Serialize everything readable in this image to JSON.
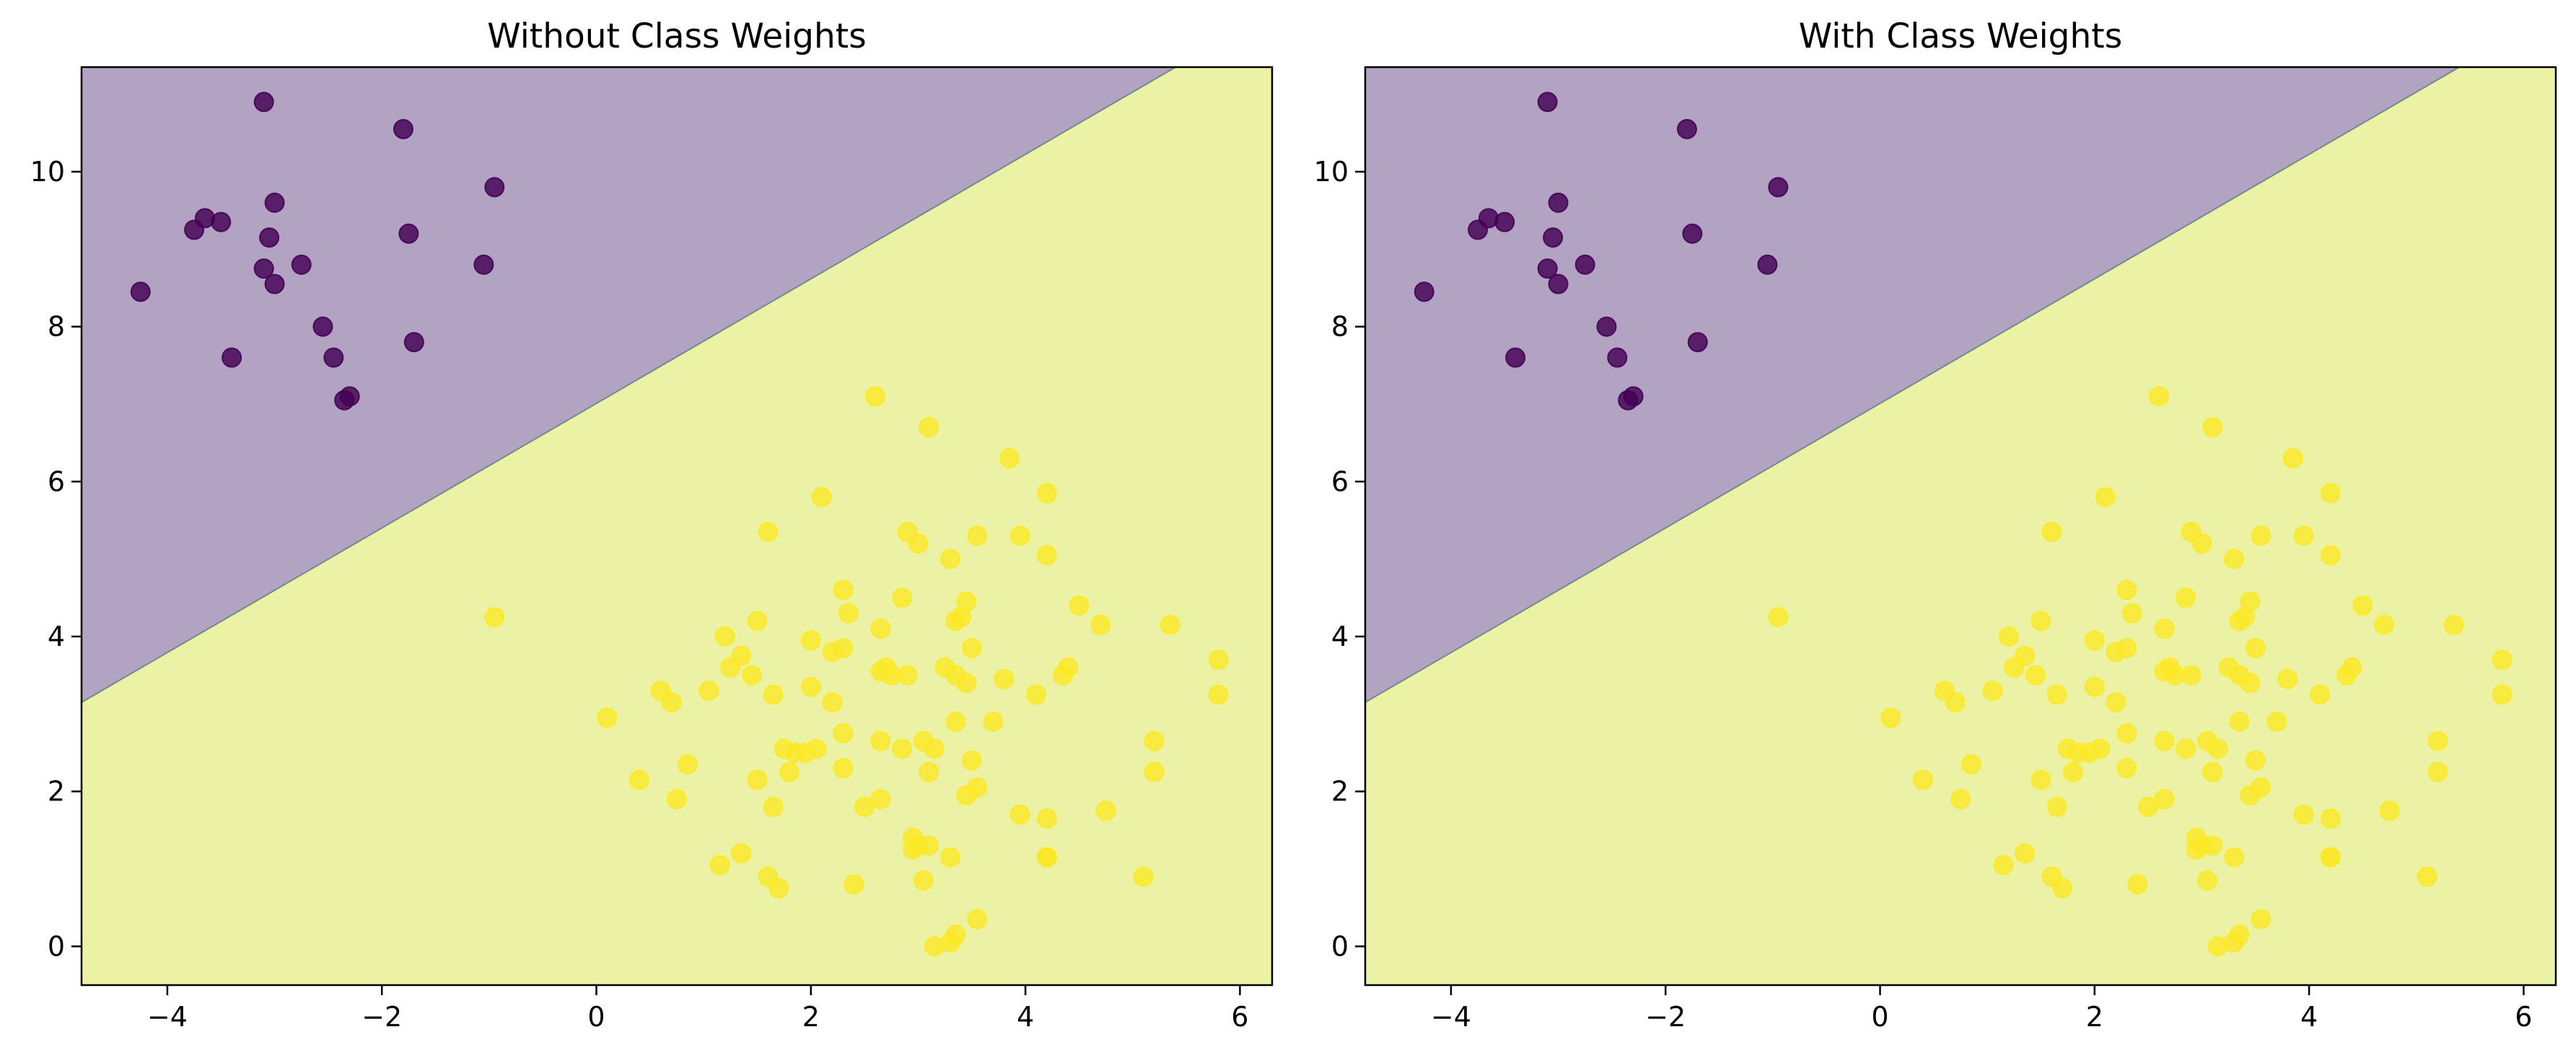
{
  "chart_data": [
    {
      "type": "scatter",
      "title": "Without Class Weights",
      "xlabel": "",
      "ylabel": "",
      "xlim": [
        -4.8,
        6.3
      ],
      "ylim": [
        -0.5,
        11.35
      ],
      "xticks": [
        -4,
        -2,
        0,
        2,
        4,
        6
      ],
      "xtick_labels": [
        "−4",
        "−2",
        "0",
        "2",
        "4",
        "6"
      ],
      "yticks": [
        0,
        2,
        4,
        6,
        8,
        10
      ],
      "ytick_labels": [
        "0",
        "2",
        "4",
        "6",
        "8",
        "10"
      ],
      "grid": false,
      "legend": "none",
      "decision_boundary": [
        [
          -4.8,
          3.15
        ],
        [
          5.4,
          11.35
        ]
      ],
      "colors": {
        "class_0": "#440154",
        "class_1": "#fde725",
        "region_0": "#b2a3c2",
        "region_1": "#ebf2a4"
      },
      "series": [
        {
          "class": 0,
          "points": [
            [
              -3.1,
              10.9
            ],
            [
              -1.8,
              10.55
            ],
            [
              -3.75,
              9.25
            ],
            [
              -3.65,
              9.4
            ],
            [
              -3.5,
              9.35
            ],
            [
              -3.0,
              9.6
            ],
            [
              -0.95,
              9.8
            ],
            [
              -3.05,
              9.15
            ],
            [
              -1.75,
              9.2
            ],
            [
              -1.05,
              8.8
            ],
            [
              -4.25,
              8.45
            ],
            [
              -3.1,
              8.75
            ],
            [
              -2.75,
              8.8
            ],
            [
              -3.0,
              8.55
            ],
            [
              -2.55,
              8.0
            ],
            [
              -3.4,
              7.6
            ],
            [
              -2.45,
              7.6
            ],
            [
              -1.7,
              7.8
            ],
            [
              -2.35,
              7.05
            ],
            [
              -2.3,
              7.1
            ]
          ]
        },
        {
          "class": 1,
          "points": [
            [
              2.6,
              7.1
            ],
            [
              3.1,
              6.7
            ],
            [
              3.85,
              6.3
            ],
            [
              4.2,
              5.85
            ],
            [
              2.1,
              5.8
            ],
            [
              1.6,
              5.35
            ],
            [
              2.9,
              5.35
            ],
            [
              3.0,
              5.2
            ],
            [
              3.55,
              5.3
            ],
            [
              3.95,
              5.3
            ],
            [
              3.3,
              5.0
            ],
            [
              4.2,
              5.05
            ],
            [
              2.3,
              4.6
            ],
            [
              2.85,
              4.5
            ],
            [
              3.45,
              4.45
            ],
            [
              4.5,
              4.4
            ],
            [
              2.35,
              4.3
            ],
            [
              3.35,
              4.2
            ],
            [
              3.4,
              4.25
            ],
            [
              1.5,
              4.2
            ],
            [
              4.7,
              4.15
            ],
            [
              5.35,
              4.15
            ],
            [
              -0.95,
              4.25
            ],
            [
              1.2,
              4.0
            ],
            [
              2.0,
              3.95
            ],
            [
              2.65,
              4.1
            ],
            [
              3.5,
              3.85
            ],
            [
              1.35,
              3.75
            ],
            [
              2.3,
              3.85
            ],
            [
              2.2,
              3.8
            ],
            [
              5.8,
              3.7
            ],
            [
              1.25,
              3.6
            ],
            [
              1.45,
              3.5
            ],
            [
              2.7,
              3.6
            ],
            [
              2.65,
              3.55
            ],
            [
              2.75,
              3.5
            ],
            [
              2.9,
              3.5
            ],
            [
              3.25,
              3.6
            ],
            [
              3.35,
              3.5
            ],
            [
              3.45,
              3.4
            ],
            [
              3.8,
              3.45
            ],
            [
              4.35,
              3.5
            ],
            [
              4.4,
              3.6
            ],
            [
              2.0,
              3.35
            ],
            [
              0.6,
              3.3
            ],
            [
              1.05,
              3.3
            ],
            [
              4.1,
              3.25
            ],
            [
              5.8,
              3.25
            ],
            [
              0.7,
              3.15
            ],
            [
              1.65,
              3.25
            ],
            [
              2.2,
              3.15
            ],
            [
              0.1,
              2.95
            ],
            [
              3.7,
              2.9
            ],
            [
              3.35,
              2.9
            ],
            [
              2.3,
              2.75
            ],
            [
              2.65,
              2.65
            ],
            [
              3.05,
              2.65
            ],
            [
              5.2,
              2.65
            ],
            [
              1.75,
              2.55
            ],
            [
              1.85,
              2.5
            ],
            [
              1.95,
              2.5
            ],
            [
              2.05,
              2.55
            ],
            [
              2.85,
              2.55
            ],
            [
              3.15,
              2.55
            ],
            [
              3.5,
              2.4
            ],
            [
              0.85,
              2.35
            ],
            [
              2.3,
              2.3
            ],
            [
              1.8,
              2.25
            ],
            [
              3.1,
              2.25
            ],
            [
              5.2,
              2.25
            ],
            [
              0.4,
              2.15
            ],
            [
              1.5,
              2.15
            ],
            [
              3.55,
              2.05
            ],
            [
              3.45,
              1.95
            ],
            [
              0.75,
              1.9
            ],
            [
              2.65,
              1.9
            ],
            [
              2.5,
              1.8
            ],
            [
              1.65,
              1.8
            ],
            [
              4.75,
              1.75
            ],
            [
              3.95,
              1.7
            ],
            [
              4.2,
              1.65
            ],
            [
              2.95,
              1.4
            ],
            [
              3.0,
              1.3
            ],
            [
              3.1,
              1.3
            ],
            [
              2.95,
              1.25
            ],
            [
              1.35,
              1.2
            ],
            [
              3.3,
              1.15
            ],
            [
              4.2,
              1.15
            ],
            [
              4.2,
              1.15
            ],
            [
              1.15,
              1.05
            ],
            [
              1.6,
              0.9
            ],
            [
              3.05,
              0.85
            ],
            [
              5.1,
              0.9
            ],
            [
              2.4,
              0.8
            ],
            [
              1.7,
              0.75
            ],
            [
              3.55,
              0.35
            ],
            [
              3.35,
              0.15
            ],
            [
              3.3,
              0.05
            ],
            [
              3.15,
              0.0
            ]
          ]
        }
      ]
    },
    {
      "type": "scatter",
      "title": "With Class Weights",
      "xlabel": "",
      "ylabel": "",
      "xlim": [
        -4.8,
        6.3
      ],
      "ylim": [
        -0.5,
        11.35
      ],
      "xticks": [
        -4,
        -2,
        0,
        2,
        4,
        6
      ],
      "xtick_labels": [
        "−4",
        "−2",
        "0",
        "2",
        "4",
        "6"
      ],
      "yticks": [
        0,
        2,
        4,
        6,
        8,
        10
      ],
      "ytick_labels": [
        "0",
        "2",
        "4",
        "6",
        "8",
        "10"
      ],
      "grid": false,
      "legend": "none",
      "decision_boundary": [
        [
          -4.8,
          3.15
        ],
        [
          5.4,
          11.35
        ]
      ],
      "colors": {
        "class_0": "#440154",
        "class_1": "#fde725",
        "region_0": "#b2a3c2",
        "region_1": "#ebf2a4"
      },
      "series": [
        {
          "class": 0,
          "points": [
            [
              -3.1,
              10.9
            ],
            [
              -1.8,
              10.55
            ],
            [
              -3.75,
              9.25
            ],
            [
              -3.65,
              9.4
            ],
            [
              -3.5,
              9.35
            ],
            [
              -3.0,
              9.6
            ],
            [
              -0.95,
              9.8
            ],
            [
              -3.05,
              9.15
            ],
            [
              -1.75,
              9.2
            ],
            [
              -1.05,
              8.8
            ],
            [
              -4.25,
              8.45
            ],
            [
              -3.1,
              8.75
            ],
            [
              -2.75,
              8.8
            ],
            [
              -3.0,
              8.55
            ],
            [
              -2.55,
              8.0
            ],
            [
              -3.4,
              7.6
            ],
            [
              -2.45,
              7.6
            ],
            [
              -1.7,
              7.8
            ],
            [
              -2.35,
              7.05
            ],
            [
              -2.3,
              7.1
            ]
          ]
        },
        {
          "class": 1,
          "points": [
            [
              2.6,
              7.1
            ],
            [
              3.1,
              6.7
            ],
            [
              3.85,
              6.3
            ],
            [
              4.2,
              5.85
            ],
            [
              2.1,
              5.8
            ],
            [
              1.6,
              5.35
            ],
            [
              2.9,
              5.35
            ],
            [
              3.0,
              5.2
            ],
            [
              3.55,
              5.3
            ],
            [
              3.95,
              5.3
            ],
            [
              3.3,
              5.0
            ],
            [
              4.2,
              5.05
            ],
            [
              2.3,
              4.6
            ],
            [
              2.85,
              4.5
            ],
            [
              3.45,
              4.45
            ],
            [
              4.5,
              4.4
            ],
            [
              2.35,
              4.3
            ],
            [
              3.35,
              4.2
            ],
            [
              3.4,
              4.25
            ],
            [
              1.5,
              4.2
            ],
            [
              4.7,
              4.15
            ],
            [
              5.35,
              4.15
            ],
            [
              -0.95,
              4.25
            ],
            [
              1.2,
              4.0
            ],
            [
              2.0,
              3.95
            ],
            [
              2.65,
              4.1
            ],
            [
              3.5,
              3.85
            ],
            [
              1.35,
              3.75
            ],
            [
              2.3,
              3.85
            ],
            [
              2.2,
              3.8
            ],
            [
              5.8,
              3.7
            ],
            [
              1.25,
              3.6
            ],
            [
              1.45,
              3.5
            ],
            [
              2.7,
              3.6
            ],
            [
              2.65,
              3.55
            ],
            [
              2.75,
              3.5
            ],
            [
              2.9,
              3.5
            ],
            [
              3.25,
              3.6
            ],
            [
              3.35,
              3.5
            ],
            [
              3.45,
              3.4
            ],
            [
              3.8,
              3.45
            ],
            [
              4.35,
              3.5
            ],
            [
              4.4,
              3.6
            ],
            [
              2.0,
              3.35
            ],
            [
              0.6,
              3.3
            ],
            [
              1.05,
              3.3
            ],
            [
              4.1,
              3.25
            ],
            [
              5.8,
              3.25
            ],
            [
              0.7,
              3.15
            ],
            [
              1.65,
              3.25
            ],
            [
              2.2,
              3.15
            ],
            [
              0.1,
              2.95
            ],
            [
              3.7,
              2.9
            ],
            [
              3.35,
              2.9
            ],
            [
              2.3,
              2.75
            ],
            [
              2.65,
              2.65
            ],
            [
              3.05,
              2.65
            ],
            [
              5.2,
              2.65
            ],
            [
              1.75,
              2.55
            ],
            [
              1.85,
              2.5
            ],
            [
              1.95,
              2.5
            ],
            [
              2.05,
              2.55
            ],
            [
              2.85,
              2.55
            ],
            [
              3.15,
              2.55
            ],
            [
              3.5,
              2.4
            ],
            [
              0.85,
              2.35
            ],
            [
              2.3,
              2.3
            ],
            [
              1.8,
              2.25
            ],
            [
              3.1,
              2.25
            ],
            [
              5.2,
              2.25
            ],
            [
              0.4,
              2.15
            ],
            [
              1.5,
              2.15
            ],
            [
              3.55,
              2.05
            ],
            [
              3.45,
              1.95
            ],
            [
              0.75,
              1.9
            ],
            [
              2.65,
              1.9
            ],
            [
              2.5,
              1.8
            ],
            [
              1.65,
              1.8
            ],
            [
              4.75,
              1.75
            ],
            [
              3.95,
              1.7
            ],
            [
              4.2,
              1.65
            ],
            [
              2.95,
              1.4
            ],
            [
              3.0,
              1.3
            ],
            [
              3.1,
              1.3
            ],
            [
              2.95,
              1.25
            ],
            [
              1.35,
              1.2
            ],
            [
              3.3,
              1.15
            ],
            [
              4.2,
              1.15
            ],
            [
              4.2,
              1.15
            ],
            [
              1.15,
              1.05
            ],
            [
              1.6,
              0.9
            ],
            [
              3.05,
              0.85
            ],
            [
              5.1,
              0.9
            ],
            [
              2.4,
              0.8
            ],
            [
              1.7,
              0.75
            ],
            [
              3.55,
              0.35
            ],
            [
              3.35,
              0.15
            ],
            [
              3.3,
              0.05
            ],
            [
              3.15,
              0.0
            ]
          ]
        }
      ]
    }
  ]
}
